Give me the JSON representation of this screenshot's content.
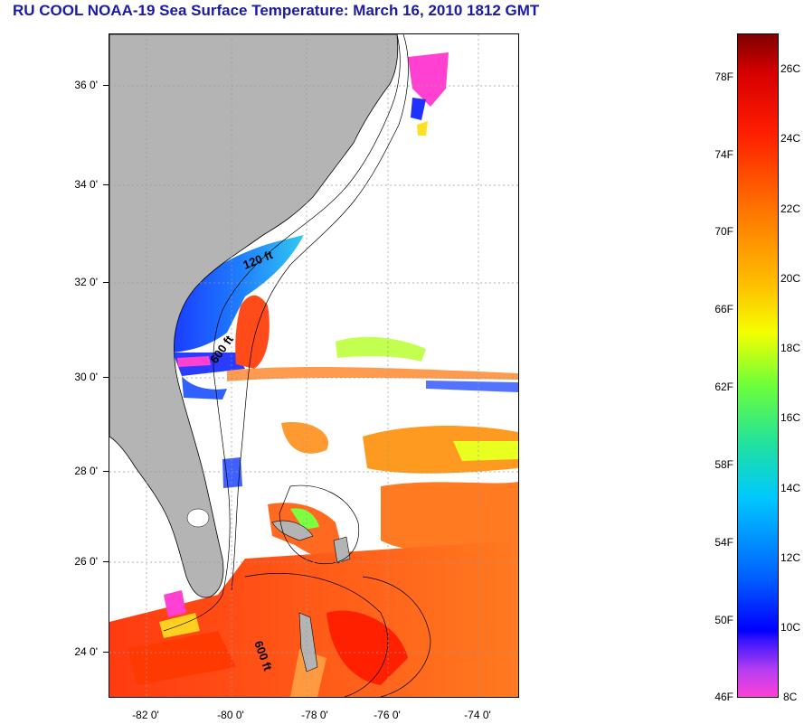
{
  "title": "RU COOL  NOAA-19  Sea Surface Temperature:  March 16, 2010 1812 GMT",
  "map": {
    "lat_labels": [
      "36 0'",
      "34 0'",
      "32 0'",
      "30 0'",
      "28 0'",
      "26 0'",
      "24 0'"
    ],
    "lon_labels": [
      "-82 0'",
      "-80 0'",
      "-78 0'",
      "-76 0'",
      "-74 0'"
    ],
    "contour_labels": [
      "120 ft",
      "600 ft",
      "600 ft"
    ],
    "colors": {
      "land": "#b4b4b4",
      "no_data": "#ffffff",
      "grid": "#999999"
    }
  },
  "colorbar": {
    "fahrenheit": [
      "78F",
      "74F",
      "70F",
      "66F",
      "62F",
      "58F",
      "54F",
      "50F",
      "46F"
    ],
    "celsius": [
      "26C",
      "24C",
      "22C",
      "20C",
      "18C",
      "16C",
      "14C",
      "12C",
      "10C",
      "8C"
    ]
  }
}
